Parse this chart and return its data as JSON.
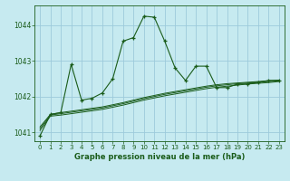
{
  "bg_color": "#c6eaf0",
  "grid_color": "#9dcadb",
  "line_color": "#1a5c1a",
  "xlabel": "Graphe pression niveau de la mer (hPa)",
  "xlim": [
    -0.5,
    23.5
  ],
  "ylim": [
    1040.75,
    1044.55
  ],
  "yticks": [
    1041,
    1042,
    1043,
    1044
  ],
  "xticks": [
    0,
    1,
    2,
    3,
    4,
    5,
    6,
    7,
    8,
    9,
    10,
    11,
    12,
    13,
    14,
    15,
    16,
    17,
    18,
    19,
    20,
    21,
    22,
    23
  ],
  "main_x": [
    0,
    1,
    2,
    3,
    4,
    5,
    6,
    7,
    8,
    9,
    10,
    11,
    12,
    13,
    14,
    15,
    16,
    17,
    18,
    19,
    20,
    21,
    22,
    23
  ],
  "main_y": [
    1040.9,
    1041.5,
    1041.55,
    1042.9,
    1041.9,
    1041.95,
    1042.1,
    1042.5,
    1043.55,
    1043.65,
    1044.25,
    1044.22,
    1043.55,
    1042.8,
    1042.45,
    1042.85,
    1042.85,
    1042.25,
    1042.25,
    1042.35,
    1042.35,
    1042.4,
    1042.45,
    1042.45
  ],
  "band1_y": [
    1041.05,
    1041.45,
    1041.48,
    1041.52,
    1041.56,
    1041.6,
    1041.64,
    1041.7,
    1041.76,
    1041.83,
    1041.9,
    1041.96,
    1042.02,
    1042.07,
    1042.12,
    1042.17,
    1042.22,
    1042.26,
    1042.29,
    1042.32,
    1042.35,
    1042.37,
    1042.39,
    1042.42
  ],
  "band2_y": [
    1041.1,
    1041.48,
    1041.52,
    1041.56,
    1041.6,
    1041.64,
    1041.68,
    1041.74,
    1041.8,
    1041.87,
    1041.94,
    1042.0,
    1042.06,
    1042.11,
    1042.16,
    1042.21,
    1042.26,
    1042.3,
    1042.33,
    1042.36,
    1042.38,
    1042.4,
    1042.42,
    1042.44
  ],
  "band3_y": [
    1041.15,
    1041.5,
    1041.55,
    1041.59,
    1041.63,
    1041.67,
    1041.71,
    1041.77,
    1041.83,
    1041.9,
    1041.97,
    1042.03,
    1042.09,
    1042.14,
    1042.19,
    1042.24,
    1042.29,
    1042.33,
    1042.36,
    1042.38,
    1042.4,
    1042.42,
    1042.44,
    1042.46
  ]
}
